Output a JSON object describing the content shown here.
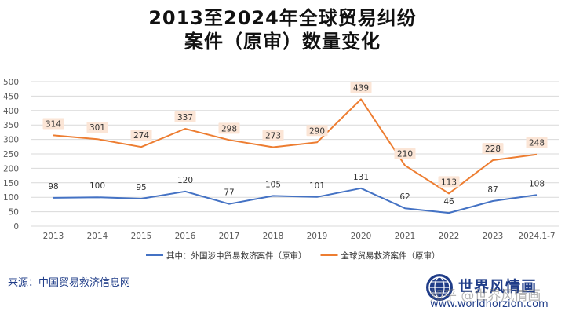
{
  "title_line1": "2013至2024年全球贸易纠纷",
  "title_line2": "案件（原审）数量变化",
  "source": "来源：中国贸易救济信息网",
  "brand": {
    "name": "世界风情画",
    "url": "www.worldhorzion.com"
  },
  "watermark": "知乎 @世界风情画",
  "chart_data": {
    "type": "line",
    "categories": [
      "2013",
      "2014",
      "2015",
      "2016",
      "2017",
      "2018",
      "2019",
      "2020",
      "2021",
      "2022",
      "2023",
      "2024.1-7"
    ],
    "ylim": [
      0,
      500
    ],
    "yticks": [
      0,
      50,
      100,
      150,
      200,
      250,
      300,
      350,
      400,
      450,
      500
    ],
    "grid": true,
    "legend_position": "bottom",
    "series": [
      {
        "name": "其中：外国涉中贸易救济案件（原审）",
        "color": "#4472c4",
        "values": [
          98,
          100,
          95,
          120,
          77,
          105,
          101,
          131,
          62,
          46,
          87,
          108
        ]
      },
      {
        "name": "全球贸易救济案件（原审）",
        "color": "#ed7d31",
        "values": [
          314,
          301,
          274,
          337,
          298,
          273,
          290,
          439,
          210,
          113,
          228,
          248
        ]
      }
    ]
  }
}
